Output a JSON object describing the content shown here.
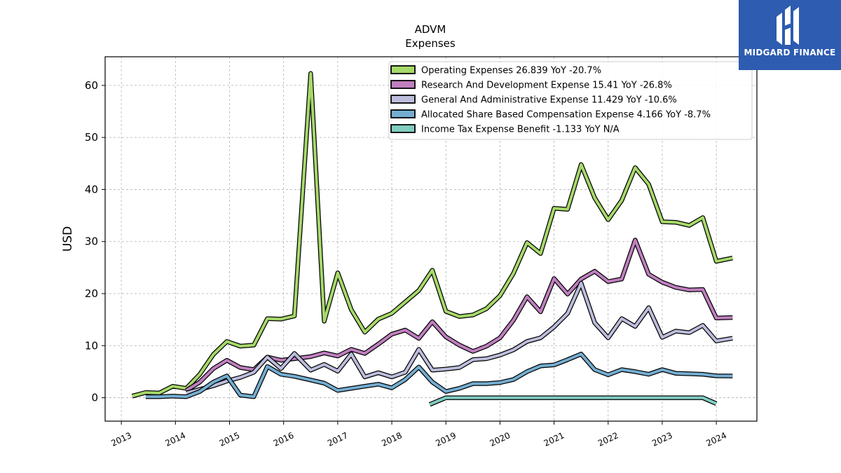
{
  "brand": {
    "name": "MIDGARD FINANCE",
    "logo_icon": "midgard-logo-icon",
    "color": "#2d5cb0"
  },
  "chart_data": {
    "type": "line",
    "title": "ADVM",
    "subtitle": "Expenses",
    "xlabel": "",
    "ylabel": "USD",
    "xlim": [
      2012.7,
      2024.75
    ],
    "ylim": [
      -4.5,
      65.5
    ],
    "x_ticks": [
      "2013",
      "2014",
      "2015",
      "2016",
      "2017",
      "2018",
      "2019",
      "2020",
      "2021",
      "2022",
      "2023",
      "2024"
    ],
    "y_ticks": [
      "0",
      "10",
      "20",
      "30",
      "40",
      "50",
      "60"
    ],
    "grid": true,
    "legend_position": "top-right",
    "series": [
      {
        "name": "Operating Expenses  26.839 YoY -20.7%",
        "color": "#a6d96a",
        "x": [
          2013.2,
          2013.45,
          2013.7,
          2013.95,
          2014.2,
          2014.45,
          2014.7,
          2014.95,
          2015.2,
          2015.45,
          2015.7,
          2015.95,
          2016.2,
          2016.5,
          2016.75,
          2017.0,
          2017.25,
          2017.5,
          2017.75,
          2018.0,
          2018.25,
          2018.5,
          2018.75,
          2019.0,
          2019.25,
          2019.5,
          2019.75,
          2020.0,
          2020.25,
          2020.5,
          2020.75,
          2021.0,
          2021.25,
          2021.5,
          2021.75,
          2022.0,
          2022.25,
          2022.5,
          2022.75,
          2023.0,
          2023.25,
          2023.5,
          2023.75,
          2024.0,
          2024.3
        ],
        "values": [
          0.3,
          1.0,
          0.9,
          2.2,
          1.8,
          4.5,
          8.3,
          10.8,
          9.9,
          10.1,
          15.2,
          15.1,
          15.7,
          62.3,
          14.7,
          24.0,
          16.9,
          12.6,
          15.1,
          16.2,
          18.4,
          20.6,
          24.5,
          16.6,
          15.6,
          15.9,
          17.1,
          19.6,
          23.9,
          29.8,
          27.7,
          36.4,
          36.2,
          44.8,
          38.4,
          34.2,
          37.9,
          44.2,
          41.0,
          33.8,
          33.7,
          33.1,
          34.6,
          26.2,
          26.839
        ]
      },
      {
        "name": "Research And Development Expense  15.41 YoY -26.8%",
        "color": "#bf7fbf",
        "x": [
          2014.2,
          2014.45,
          2014.7,
          2014.95,
          2015.2,
          2015.45,
          2015.7,
          2015.95,
          2016.2,
          2016.5,
          2016.75,
          2017.0,
          2017.25,
          2017.5,
          2017.75,
          2018.0,
          2018.25,
          2018.5,
          2018.75,
          2019.0,
          2019.25,
          2019.5,
          2019.75,
          2020.0,
          2020.25,
          2020.5,
          2020.75,
          2021.0,
          2021.25,
          2021.5,
          2021.75,
          2022.0,
          2022.25,
          2022.5,
          2022.75,
          2023.0,
          2023.25,
          2023.5,
          2023.75,
          2024.0,
          2024.3
        ],
        "values": [
          1.4,
          3.0,
          5.6,
          7.2,
          5.8,
          5.4,
          7.8,
          7.2,
          7.5,
          7.9,
          8.6,
          8.0,
          9.3,
          8.5,
          10.3,
          12.2,
          13.0,
          11.4,
          14.6,
          11.7,
          10.1,
          8.9,
          9.9,
          11.5,
          14.9,
          19.4,
          16.5,
          22.9,
          19.9,
          22.8,
          24.3,
          22.3,
          22.8,
          30.3,
          23.7,
          22.2,
          21.2,
          20.7,
          20.8,
          15.3,
          15.41
        ]
      },
      {
        "name": "General And Administrative Expense  11.429 YoY -10.6%",
        "color": "#bcbddc",
        "x": [
          2014.2,
          2014.45,
          2014.7,
          2014.95,
          2015.2,
          2015.45,
          2015.7,
          2015.95,
          2016.2,
          2016.5,
          2016.75,
          2017.0,
          2017.25,
          2017.5,
          2017.75,
          2018.0,
          2018.25,
          2018.5,
          2018.75,
          2019.0,
          2019.25,
          2019.5,
          2019.75,
          2020.0,
          2020.25,
          2020.5,
          2020.75,
          2021.0,
          2021.25,
          2021.5,
          2021.75,
          2022.0,
          2022.25,
          2022.5,
          2022.75,
          2023.0,
          2023.25,
          2023.5,
          2023.75,
          2024.0,
          2024.3
        ],
        "values": [
          0.9,
          1.6,
          2.3,
          3.2,
          3.9,
          4.9,
          7.8,
          5.6,
          8.5,
          5.3,
          6.4,
          5.1,
          8.4,
          4.0,
          4.8,
          4.0,
          4.9,
          9.3,
          5.3,
          5.5,
          5.8,
          7.3,
          7.5,
          8.2,
          9.2,
          10.8,
          11.5,
          13.6,
          16.2,
          22.0,
          14.4,
          11.5,
          15.2,
          13.7,
          17.3,
          11.6,
          12.8,
          12.5,
          13.9,
          10.9,
          11.429
        ]
      },
      {
        "name": "Allocated Share Based Compensation Expense  4.166 YoY -8.7%",
        "color": "#74add1",
        "x": [
          2013.45,
          2013.7,
          2013.95,
          2014.2,
          2014.45,
          2014.7,
          2014.95,
          2015.2,
          2015.45,
          2015.7,
          2015.95,
          2016.2,
          2016.5,
          2016.75,
          2017.0,
          2017.25,
          2017.5,
          2017.75,
          2018.0,
          2018.25,
          2018.5,
          2018.75,
          2019.0,
          2019.25,
          2019.5,
          2019.75,
          2020.0,
          2020.25,
          2020.5,
          2020.75,
          2021.0,
          2021.25,
          2021.5,
          2021.75,
          2022.0,
          2022.25,
          2022.5,
          2022.75,
          2023.0,
          2023.25,
          2023.5,
          2023.75,
          2024.0,
          2024.3
        ],
        "values": [
          0.2,
          0.2,
          0.3,
          0.2,
          1.2,
          3.0,
          4.2,
          0.5,
          0.2,
          6.0,
          4.5,
          4.1,
          3.4,
          2.8,
          1.4,
          1.8,
          2.2,
          2.6,
          1.9,
          3.5,
          5.9,
          3.0,
          1.2,
          1.8,
          2.7,
          2.7,
          2.9,
          3.5,
          5.0,
          6.1,
          6.3,
          7.3,
          8.4,
          5.4,
          4.4,
          5.4,
          5.0,
          4.5,
          5.4,
          4.7,
          4.6,
          4.5,
          4.2,
          4.166
        ]
      },
      {
        "name": "Income Tax Expense Benefit  -1.133 YoY N/A",
        "color": "#80cdc1",
        "x": [
          2018.7,
          2019.0,
          2019.25,
          2019.5,
          2019.75,
          2020.0,
          2020.25,
          2020.5,
          2020.75,
          2021.0,
          2021.25,
          2021.5,
          2021.75,
          2022.0,
          2022.25,
          2022.5,
          2022.75,
          2023.0,
          2023.25,
          2023.5,
          2023.75,
          2024.0
        ],
        "values": [
          -1.3,
          0.0,
          0.0,
          0.0,
          0.0,
          0.0,
          0.0,
          0.0,
          0.0,
          0.0,
          0.0,
          0.0,
          0.0,
          0.0,
          0.0,
          0.0,
          0.0,
          0.0,
          0.0,
          0.0,
          0.0,
          -1.133
        ]
      }
    ]
  }
}
